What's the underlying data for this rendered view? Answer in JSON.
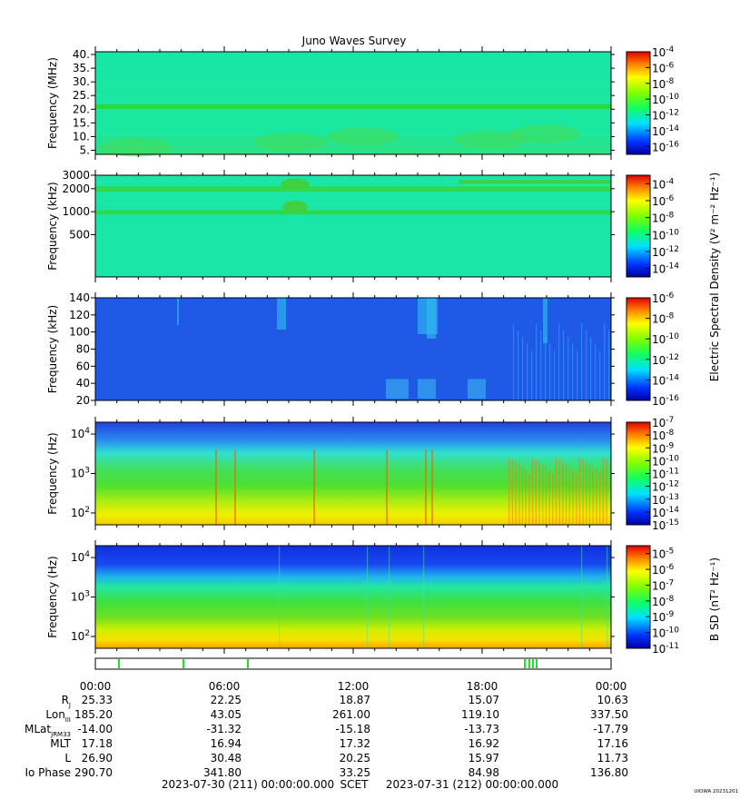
{
  "chart_data": {
    "type": "heatmap",
    "title": "Juno Waves Survey",
    "footer_label": "UIOWA 20231201",
    "panels": [
      {
        "id": "hfwbr",
        "ylabel": "Frequency (MHz)",
        "yscale": "linear",
        "ylim": [
          3.5,
          41
        ],
        "yticks": [
          {
            "v": 5,
            "l": "5."
          },
          {
            "v": 10,
            "l": "10."
          },
          {
            "v": 15,
            "l": "15."
          },
          {
            "v": 20,
            "l": "20."
          },
          {
            "v": 25,
            "l": "25."
          },
          {
            "v": 30,
            "l": "30."
          },
          {
            "v": 35,
            "l": "35."
          },
          {
            "v": 40,
            "l": "40."
          }
        ],
        "background": "#19e6a0",
        "colorbar": {
          "scale": "log",
          "range_exp": [
            -17,
            -4
          ],
          "ticks": [
            -4,
            -6,
            -8,
            -10,
            -12,
            -14,
            -16
          ]
        }
      },
      {
        "id": "hfr",
        "ylabel": "Frequency (kHz)",
        "yscale": "log",
        "ylim": [
          140,
          3000
        ],
        "yticks": [
          {
            "v": 500,
            "l": "500"
          },
          {
            "v": 1000,
            "l": "1000"
          },
          {
            "v": 2000,
            "l": "2000"
          },
          {
            "v": 3000,
            "l": "3000"
          }
        ],
        "background": "#1ae6a8",
        "colorbar": {
          "scale": "log",
          "range_exp": [
            -15,
            -3
          ],
          "ticks": [
            -4,
            -6,
            -8,
            -10,
            -12,
            -14
          ]
        }
      },
      {
        "id": "lfrhi",
        "ylabel": "Frequency (kHz)",
        "yscale": "linear",
        "ylim": [
          20,
          140
        ],
        "yticks": [
          {
            "v": 20,
            "l": "20"
          },
          {
            "v": 40,
            "l": "40"
          },
          {
            "v": 60,
            "l": "60"
          },
          {
            "v": 80,
            "l": "80"
          },
          {
            "v": 100,
            "l": "100"
          },
          {
            "v": 120,
            "l": "120"
          },
          {
            "v": 140,
            "l": "140"
          }
        ],
        "background": "#1e5ae6",
        "colorbar": {
          "scale": "log",
          "range_exp": [
            -16,
            -6
          ],
          "ticks": [
            -6,
            -8,
            -10,
            -12,
            -14,
            -16
          ]
        }
      },
      {
        "id": "lfrlo",
        "ylabel": "Frequency (Hz)",
        "yscale": "log",
        "ylim": [
          50,
          20000
        ],
        "yticks": [
          {
            "v": 100,
            "l": "10",
            "sup": "2"
          },
          {
            "v": 1000,
            "l": "10",
            "sup": "3"
          },
          {
            "v": 10000,
            "l": "10",
            "sup": "4"
          }
        ],
        "background": "#30d050",
        "colorbar": {
          "scale": "log",
          "range_exp": [
            -15,
            -7
          ],
          "ticks": [
            -7,
            -8,
            -9,
            -10,
            -11,
            -12,
            -13,
            -14,
            -15
          ]
        }
      },
      {
        "id": "bfield",
        "ylabel": "Frequency (Hz)",
        "yscale": "log",
        "ylim": [
          50,
          20000
        ],
        "yticks": [
          {
            "v": 100,
            "l": "10",
            "sup": "2"
          },
          {
            "v": 1000,
            "l": "10",
            "sup": "3"
          },
          {
            "v": 10000,
            "l": "10",
            "sup": "4"
          }
        ],
        "background": "#4cd040",
        "colorbar": {
          "scale": "log",
          "range_exp": [
            -11,
            -4.5
          ],
          "ticks": [
            -5,
            -6,
            -7,
            -8,
            -9,
            -10,
            -11
          ]
        }
      }
    ],
    "colorbar_labels": {
      "electric": "Electric Spectral Density (V² m⁻² Hz⁻¹)",
      "magnetic": "B SD (nT² Hz⁻¹)"
    },
    "tick_base": "10",
    "x": {
      "ticks": [
        "00:00",
        "06:00",
        "12:00",
        "18:00",
        "00:00"
      ]
    },
    "ephemeris": [
      {
        "label": "R",
        "sub": "J",
        "values": [
          "25.33",
          "22.25",
          "18.87",
          "15.07",
          "10.63"
        ]
      },
      {
        "label": "Lon",
        "sub": "III",
        "values": [
          "185.20",
          "43.05",
          "261.00",
          "119.10",
          "337.50"
        ]
      },
      {
        "label": "MLat",
        "sub": "JRM33",
        "values": [
          "-14.00",
          "-31.32",
          "-15.18",
          "-13.73",
          "-17.79"
        ]
      },
      {
        "label": "MLT",
        "sub": "",
        "values": [
          "17.18",
          "16.94",
          "17.32",
          "16.92",
          "17.16"
        ]
      },
      {
        "label": "L",
        "sub": "",
        "values": [
          "26.90",
          "30.48",
          "20.25",
          "15.97",
          "11.73"
        ]
      },
      {
        "label": "Io Phase",
        "sub": "",
        "values": [
          "290.70",
          "341.80",
          "33.25",
          "84.98",
          "136.80"
        ]
      }
    ],
    "time_range": {
      "start": "2023-07-30 (211) 00:00:00.000",
      "center": "SCET",
      "end": "2023-07-31 (212) 00:00:00.000"
    }
  }
}
